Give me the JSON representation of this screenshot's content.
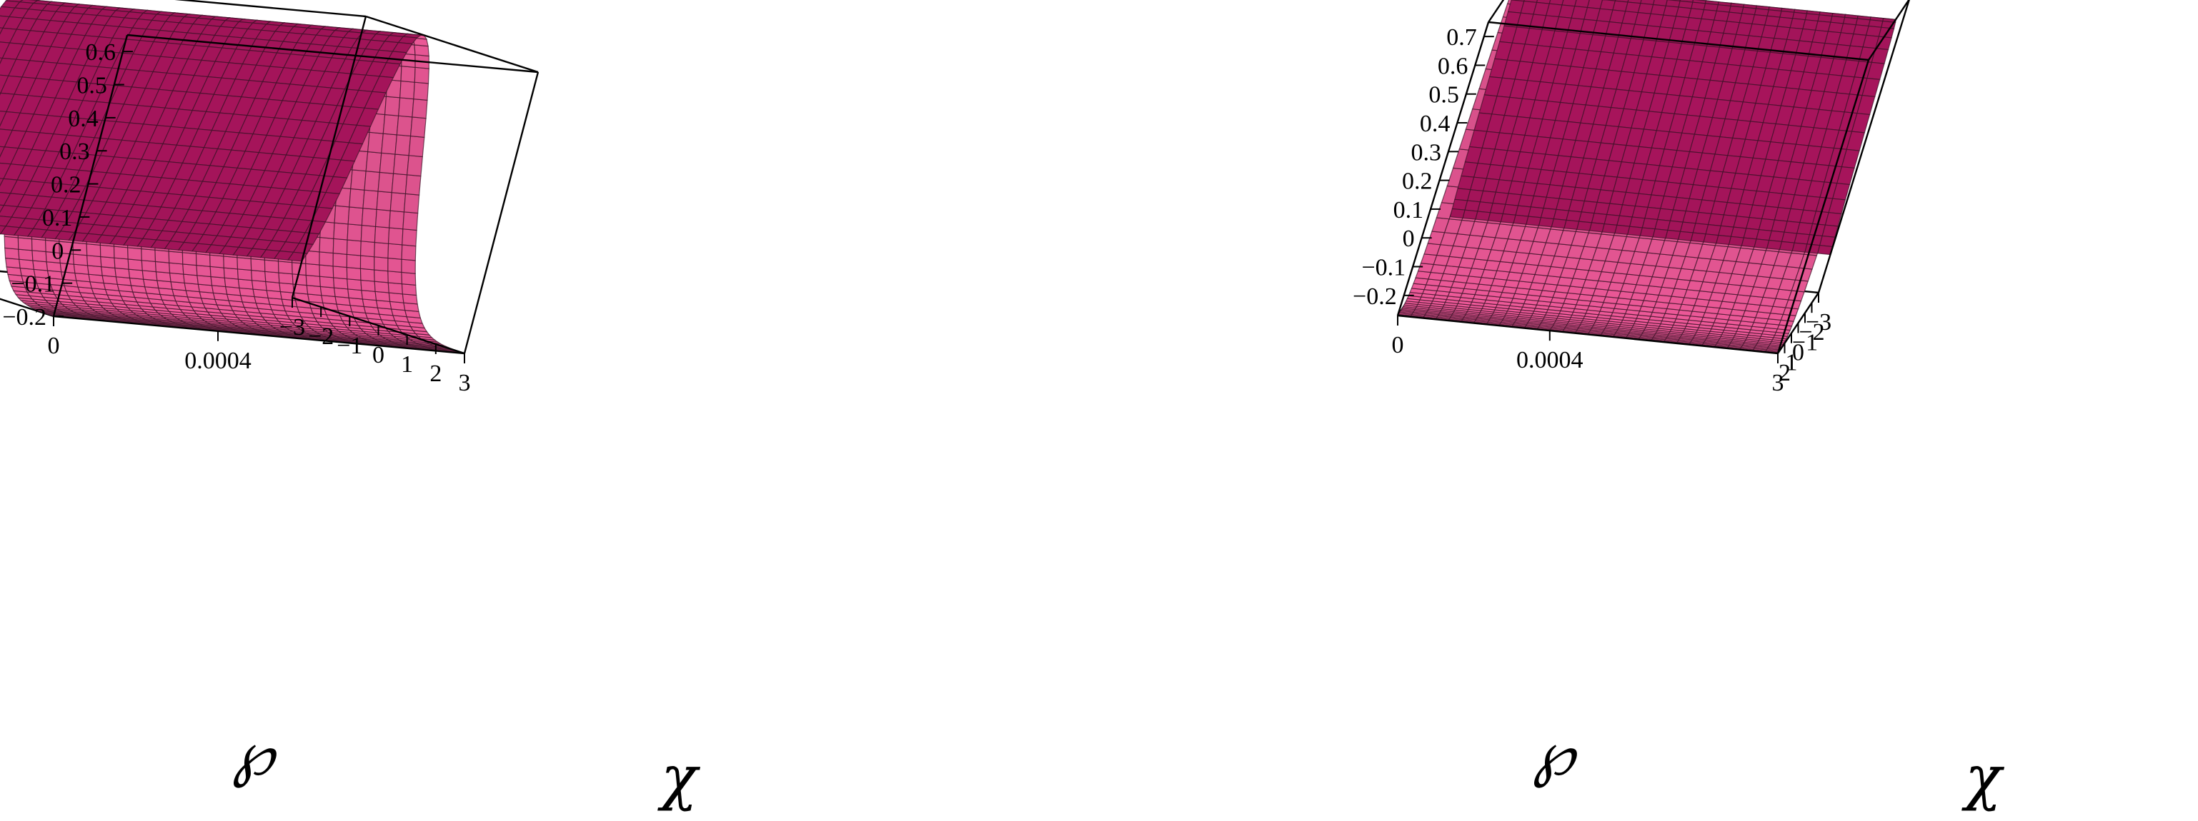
{
  "charts": [
    {
      "chart_data": {
        "type": "surface3d",
        "z_ticks": [
          "0.6",
          "0.5",
          "0.4",
          "0.3",
          "0.2",
          "0.1",
          "0",
          "−0.1",
          "−0.2"
        ],
        "z_range": [
          -0.2,
          0.65
        ],
        "wp_ticks": [
          "0",
          "0.0004"
        ],
        "wp_range": [
          0,
          0.001
        ],
        "chi_ticks": [
          "3",
          "2",
          "1",
          "0",
          "−1",
          "−2",
          "−3"
        ],
        "chi_range": [
          -3,
          3
        ],
        "xlabel": "℘",
        "ylabel": "χ",
        "profile": {
          "baseline": -0.2,
          "peak": 0.65,
          "center": -1.0,
          "width": 1.4
        },
        "surface_color": "#f05a9a",
        "shadow_color": "#a4145a"
      }
    },
    {
      "chart_data": {
        "type": "surface3d",
        "z_ticks": [
          "0.7",
          "0.6",
          "0.5",
          "0.4",
          "0.3",
          "0.2",
          "0.1",
          "0",
          "−0.1",
          "−0.2"
        ],
        "z_range": [
          -0.27,
          0.75
        ],
        "wp_ticks": [
          "0",
          "0.0004"
        ],
        "wp_range": [
          0,
          0.001
        ],
        "chi_ticks": [
          "3",
          "2",
          "1",
          "0",
          "−1",
          "−2",
          "−3"
        ],
        "chi_range": [
          -3,
          3
        ],
        "xlabel": "℘",
        "ylabel": "χ",
        "profile": {
          "baseline": -0.27,
          "peak": 0.75,
          "center": -1.0,
          "width": 1.4
        },
        "surface_color": "#f05a9a",
        "shadow_color": "#a4145a"
      }
    }
  ]
}
